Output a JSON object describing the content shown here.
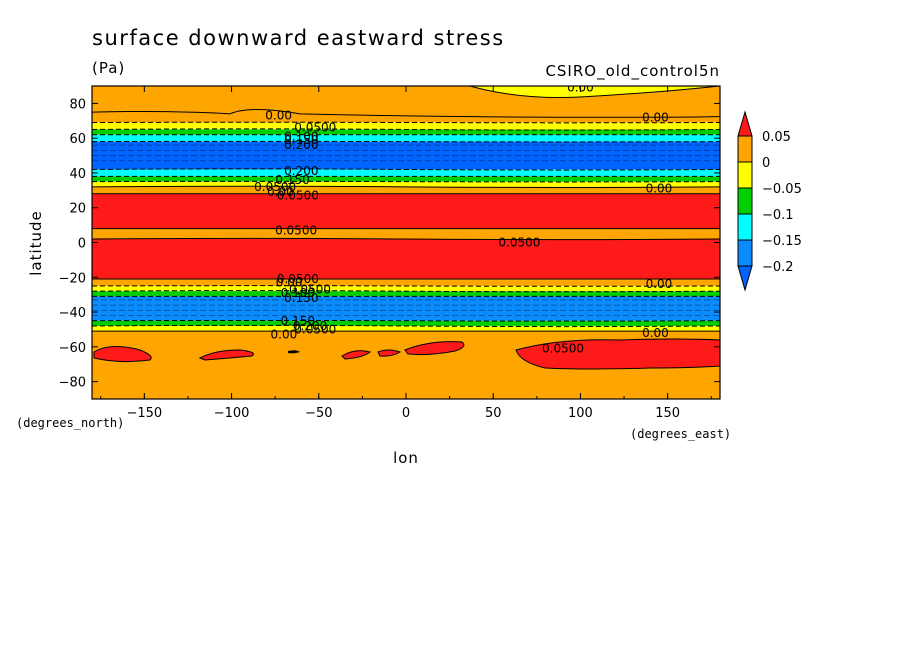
{
  "chart_data": {
    "type": "contour",
    "title": "surface downward eastward stress",
    "units": "(Pa)",
    "model": "CSIRO_old_control5n",
    "xlabel": "lon",
    "ylabel": "latitude",
    "x_units": "(degrees_east)",
    "y_units": "(degrees_north)",
    "xlim": [
      -180,
      180
    ],
    "ylim": [
      -90,
      90
    ],
    "x_ticks": [
      -150,
      -100,
      -50,
      0,
      50,
      100,
      150
    ],
    "y_ticks": [
      -80,
      -60,
      -40,
      -20,
      0,
      20,
      40,
      60,
      80
    ],
    "colorbar": {
      "labels": [
        "0.05",
        "0",
        "−0.05",
        "−0.1",
        "−0.15",
        "−0.2"
      ],
      "colors": [
        "#ff1a1a",
        "#ffa500",
        "#ffff00",
        "#00d000",
        "#00ffff",
        "#0a8cff",
        "#0064ff"
      ]
    },
    "bands": [
      {
        "lat_top": 90,
        "lat_bot": 69,
        "level": "0 to 0.05"
      },
      {
        "lat_top": 69,
        "lat_bot": 65,
        "level": "-0.05 to 0"
      },
      {
        "lat_top": 65,
        "lat_bot": 62,
        "level": "-0.1 to -0.05"
      },
      {
        "lat_top": 62,
        "lat_bot": 58,
        "level": "-0.15 to -0.1"
      },
      {
        "lat_top": 58,
        "lat_bot": 42,
        "level": "< -0.2"
      },
      {
        "lat_top": 42,
        "lat_bot": 38,
        "level": "-0.15 to -0.1"
      },
      {
        "lat_top": 38,
        "lat_bot": 35,
        "level": "-0.1 to -0.05"
      },
      {
        "lat_top": 35,
        "lat_bot": 32,
        "level": "-0.05 to 0"
      },
      {
        "lat_top": 32,
        "lat_bot": 28,
        "level": "0 to 0.05"
      },
      {
        "lat_top": 28,
        "lat_bot": 8,
        "level": "> 0.05"
      },
      {
        "lat_top": 8,
        "lat_bot": 2,
        "level": "0 to 0.05"
      },
      {
        "lat_top": 2,
        "lat_bot": -21,
        "level": "> 0.05"
      },
      {
        "lat_top": -21,
        "lat_bot": -25,
        "level": "0 to 0.05"
      },
      {
        "lat_top": -25,
        "lat_bot": -28,
        "level": "-0.05 to 0"
      },
      {
        "lat_top": -28,
        "lat_bot": -31,
        "level": "-0.1 to -0.05"
      },
      {
        "lat_top": -31,
        "lat_bot": -45,
        "level": "-0.2 to -0.15"
      },
      {
        "lat_top": -45,
        "lat_bot": -48,
        "level": "-0.1 to -0.05"
      },
      {
        "lat_top": -48,
        "lat_bot": -51,
        "level": "-0.05 to 0"
      },
      {
        "lat_top": -51,
        "lat_bot": -90,
        "level": "0 to 0.05"
      }
    ],
    "contour_labels": [
      {
        "text": "0.00",
        "lon": -73,
        "lat": 73
      },
      {
        "text": "0.0500",
        "lon": -52,
        "lat": 66
      },
      {
        "text": "0.100",
        "lon": -60,
        "lat": 61
      },
      {
        "text": "0.150",
        "lon": -60,
        "lat": 59
      },
      {
        "text": "0.200",
        "lon": -60,
        "lat": 56
      },
      {
        "text": "0.00",
        "lon": 100,
        "lat": 89
      },
      {
        "text": "0.00",
        "lon": 143,
        "lat": 72
      },
      {
        "text": "0.200",
        "lon": -60,
        "lat": 41
      },
      {
        "text": "0.150",
        "lon": -65,
        "lat": 36
      },
      {
        "text": "0.0500",
        "lon": -75,
        "lat": 32
      },
      {
        "text": "0.00",
        "lon": -72,
        "lat": 29
      },
      {
        "text": "0.0500",
        "lon": -62,
        "lat": 27
      },
      {
        "text": "0.00",
        "lon": 145,
        "lat": 31
      },
      {
        "text": "0.0500",
        "lon": -63,
        "lat": 7
      },
      {
        "text": "0.0500",
        "lon": 65,
        "lat": 0
      },
      {
        "text": "0.0500",
        "lon": -62,
        "lat": -21
      },
      {
        "text": "0.00",
        "lon": -67,
        "lat": -23
      },
      {
        "text": "0.0500",
        "lon": -55,
        "lat": -27
      },
      {
        "text": "0.100",
        "lon": -62,
        "lat": -29
      },
      {
        "text": "0.150",
        "lon": -60,
        "lat": -32
      },
      {
        "text": "0.00",
        "lon": 145,
        "lat": -24
      },
      {
        "text": "0.150",
        "lon": -62,
        "lat": -45
      },
      {
        "text": "0.200",
        "lon": -55,
        "lat": -48
      },
      {
        "text": "0.0500",
        "lon": -52,
        "lat": -50
      },
      {
        "text": "0.00",
        "lon": -70,
        "lat": -53
      },
      {
        "text": "0.00",
        "lon": 143,
        "lat": -52
      },
      {
        "text": "0.0500",
        "lon": 90,
        "lat": -61
      }
    ]
  }
}
